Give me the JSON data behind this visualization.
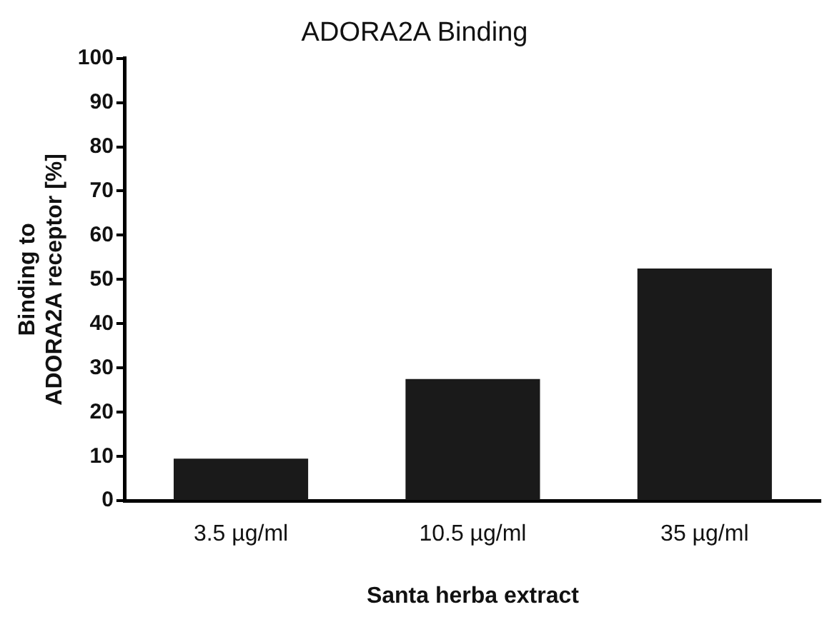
{
  "chart_data": {
    "type": "bar",
    "title": "ADORA2A Binding",
    "xlabel": "Santa herba extract",
    "ylabel": "Binding to\nADORA2A receptor [%]",
    "categories": [
      "3.5 µg/ml",
      "10.5 µg/ml",
      "35 µg/ml"
    ],
    "values": [
      9.5,
      27.5,
      52.5
    ],
    "color": "#1a1a1a",
    "ylim": [
      0,
      100
    ],
    "yticks": [
      0,
      10,
      20,
      30,
      40,
      50,
      60,
      70,
      80,
      90,
      100
    ],
    "grid": false,
    "legend": false
  }
}
